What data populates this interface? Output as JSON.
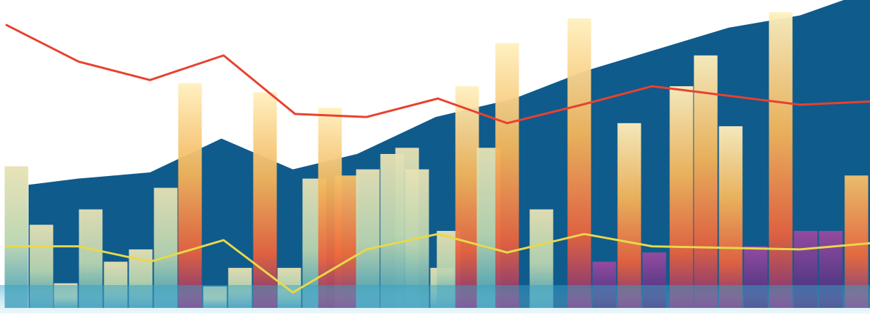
{
  "chart_data": {
    "type": "bar",
    "title": "",
    "xlabel": "",
    "ylabel": "",
    "ylim": [
      0,
      100
    ],
    "grid": false,
    "legend": "none",
    "bars": [
      {
        "x": 23,
        "value": 46
      },
      {
        "x": 58,
        "value": 27
      },
      {
        "x": 92,
        "value": 8
      },
      {
        "x": 127,
        "value": 32
      },
      {
        "x": 162,
        "value": 15
      },
      {
        "x": 197,
        "value": 19
      },
      {
        "x": 232,
        "value": 39
      },
      {
        "x": 266,
        "value": 73
      },
      {
        "x": 301,
        "value": 7
      },
      {
        "x": 336,
        "value": 13
      },
      {
        "x": 371,
        "value": 70
      },
      {
        "x": 405,
        "value": 13
      },
      {
        "x": 440,
        "value": 42
      },
      {
        "x": 462,
        "value": 65
      },
      {
        "x": 485,
        "value": 43
      },
      {
        "x": 515,
        "value": 45
      },
      {
        "x": 549,
        "value": 50
      },
      {
        "x": 570,
        "value": 52
      },
      {
        "x": 584,
        "value": 45
      },
      {
        "x": 619,
        "value": 13
      },
      {
        "x": 628,
        "value": 25
      },
      {
        "x": 654,
        "value": 72
      },
      {
        "x": 684,
        "value": 52
      },
      {
        "x": 710,
        "value": 86
      },
      {
        "x": 758,
        "value": 32
      },
      {
        "x": 811,
        "value": 94
      },
      {
        "x": 846,
        "value": 15
      },
      {
        "x": 881,
        "value": 60
      },
      {
        "x": 916,
        "value": 18
      },
      {
        "x": 954,
        "value": 72
      },
      {
        "x": 988,
        "value": 82
      },
      {
        "x": 1023,
        "value": 59
      },
      {
        "x": 1058,
        "value": 20
      },
      {
        "x": 1093,
        "value": 96
      },
      {
        "x": 1128,
        "value": 25
      },
      {
        "x": 1163,
        "value": 25
      },
      {
        "x": 1199,
        "value": 43
      }
    ],
    "series": [
      {
        "values": [
          [
            8,
            92
          ],
          [
            110,
            80
          ],
          [
            210,
            74
          ],
          [
            313,
            82
          ],
          [
            413,
            63
          ],
          [
            513,
            62
          ],
          [
            613,
            68
          ],
          [
            710,
            60
          ],
          [
            815,
            66
          ],
          [
            913,
            72
          ],
          [
            1120,
            66
          ],
          [
            1218,
            67
          ]
        ]
      },
      {
        "values": [
          [
            8,
            20
          ],
          [
            110,
            20
          ],
          [
            210,
            15
          ],
          [
            313,
            22
          ],
          [
            410,
            5
          ],
          [
            513,
            19
          ],
          [
            613,
            24
          ],
          [
            710,
            18
          ],
          [
            818,
            24
          ],
          [
            913,
            20
          ],
          [
            1120,
            19
          ],
          [
            1218,
            21
          ]
        ]
      }
    ],
    "area": [
      [
        40,
        40
      ],
      [
        110,
        42
      ],
      [
        210,
        44
      ],
      [
        310,
        55
      ],
      [
        410,
        45
      ],
      [
        500,
        50
      ],
      [
        610,
        62
      ],
      [
        720,
        68
      ],
      [
        820,
        77
      ],
      [
        920,
        84
      ],
      [
        1020,
        91
      ],
      [
        1120,
        95
      ],
      [
        1218,
        103
      ]
    ]
  }
}
